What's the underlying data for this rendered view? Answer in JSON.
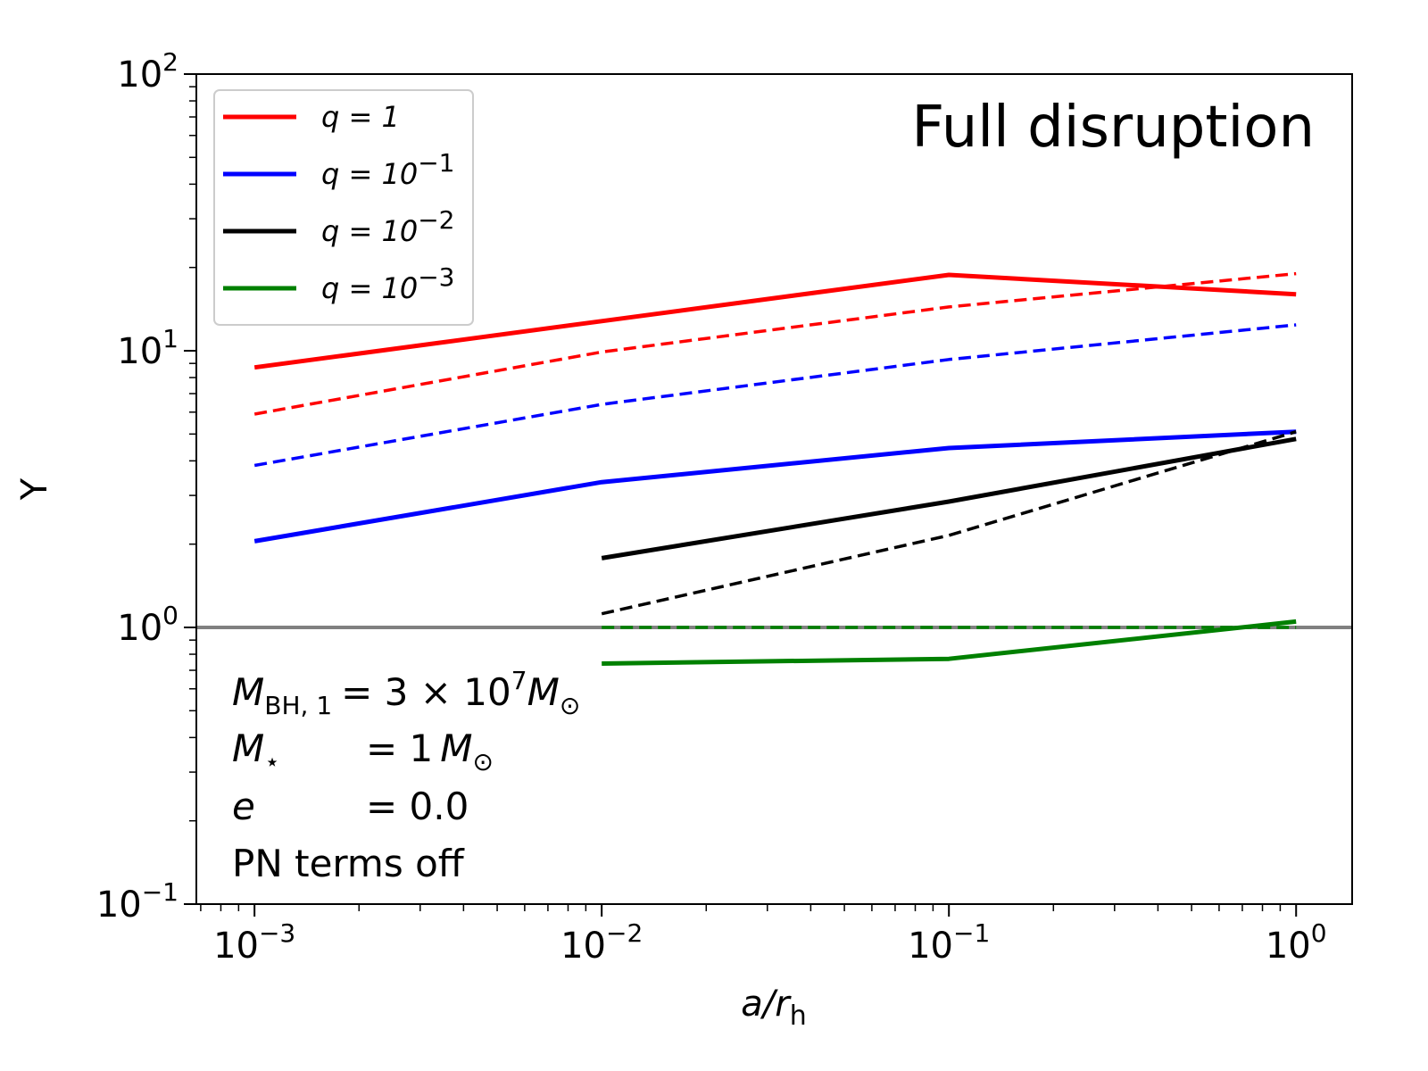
{
  "chart_data": {
    "type": "line",
    "x_scale": "log",
    "y_scale": "log",
    "xlim": [
      0.00068,
      1.45
    ],
    "ylim": [
      0.1,
      100
    ],
    "xlabel_main": "a/r",
    "xlabel_sub": "h",
    "ylabel": "Y",
    "x_ticks": [
      {
        "value": 0.001,
        "base": "10",
        "exp": "−3"
      },
      {
        "value": 0.01,
        "base": "10",
        "exp": "−2"
      },
      {
        "value": 0.1,
        "base": "10",
        "exp": "−1"
      },
      {
        "value": 1,
        "base": "10",
        "exp": "0"
      }
    ],
    "y_ticks": [
      {
        "value": 0.1,
        "base": "10",
        "exp": "−1"
      },
      {
        "value": 1,
        "base": "10",
        "exp": "0"
      },
      {
        "value": 10,
        "base": "10",
        "exp": "1"
      },
      {
        "value": 100,
        "base": "10",
        "exp": "2"
      }
    ],
    "reference_line": {
      "y": 1,
      "color": "#808080"
    },
    "series": [
      {
        "q_label": "q = 1",
        "color": "#ff0000",
        "style": "solid",
        "x": [
          0.001,
          0.01,
          0.1,
          1
        ],
        "y": [
          8.7,
          12.8,
          18.8,
          16.0
        ]
      },
      {
        "q_label": "q = 1",
        "color": "#ff0000",
        "style": "dashed",
        "x": [
          0.001,
          0.01,
          0.1,
          1
        ],
        "y": [
          5.9,
          9.9,
          14.4,
          19.0
        ]
      },
      {
        "q_label": "q = 10⁻¹",
        "color": "#0000ff",
        "style": "solid",
        "x": [
          0.001,
          0.01,
          0.1,
          1
        ],
        "y": [
          2.05,
          3.35,
          4.45,
          5.1
        ]
      },
      {
        "q_label": "q = 10⁻¹",
        "color": "#0000ff",
        "style": "dashed",
        "x": [
          0.001,
          0.01,
          0.1,
          1
        ],
        "y": [
          3.85,
          6.4,
          9.3,
          12.4
        ]
      },
      {
        "q_label": "q = 10⁻²",
        "color": "#000000",
        "style": "solid",
        "x": [
          0.01,
          0.1,
          1
        ],
        "y": [
          1.78,
          2.85,
          4.8
        ]
      },
      {
        "q_label": "q = 10⁻²",
        "color": "#000000",
        "style": "dashed",
        "x": [
          0.01,
          0.1,
          1
        ],
        "y": [
          1.12,
          2.15,
          5.1
        ]
      },
      {
        "q_label": "q = 10⁻³",
        "color": "#008000",
        "style": "solid",
        "x": [
          0.01,
          0.1,
          1
        ],
        "y": [
          0.74,
          0.77,
          1.05
        ]
      },
      {
        "q_label": "q = 10⁻³",
        "color": "#008000",
        "style": "dashed",
        "x": [
          0.01,
          0.1,
          1
        ],
        "y": [
          1.0,
          1.0,
          1.0
        ]
      }
    ],
    "legend": {
      "placement": "top-left",
      "entries": [
        {
          "base": "q = 1",
          "exp": "",
          "color": "#ff0000"
        },
        {
          "base": "q = 10",
          "exp": "−1",
          "color": "#0000ff"
        },
        {
          "base": "q = 10",
          "exp": "−2",
          "color": "#000000"
        },
        {
          "base": "q = 10",
          "exp": "−3",
          "color": "#008000"
        }
      ]
    },
    "annotation_title": "Full disruption",
    "annotations": {
      "mbh_sym": "M",
      "mbh_sub": "BH, 1",
      "mbh_value": "= 3 × 10",
      "mbh_exp": "7",
      "mbh_unit": "M",
      "mbh_unit_sub": "⊙",
      "mstar_sym": "M",
      "mstar_sub": "⋆",
      "mstar_value": "= 1",
      "mstar_unit": "M",
      "mstar_unit_sub": "⊙",
      "e_sym": "e",
      "e_value": "= 0.0",
      "pn": "PN terms off"
    }
  }
}
